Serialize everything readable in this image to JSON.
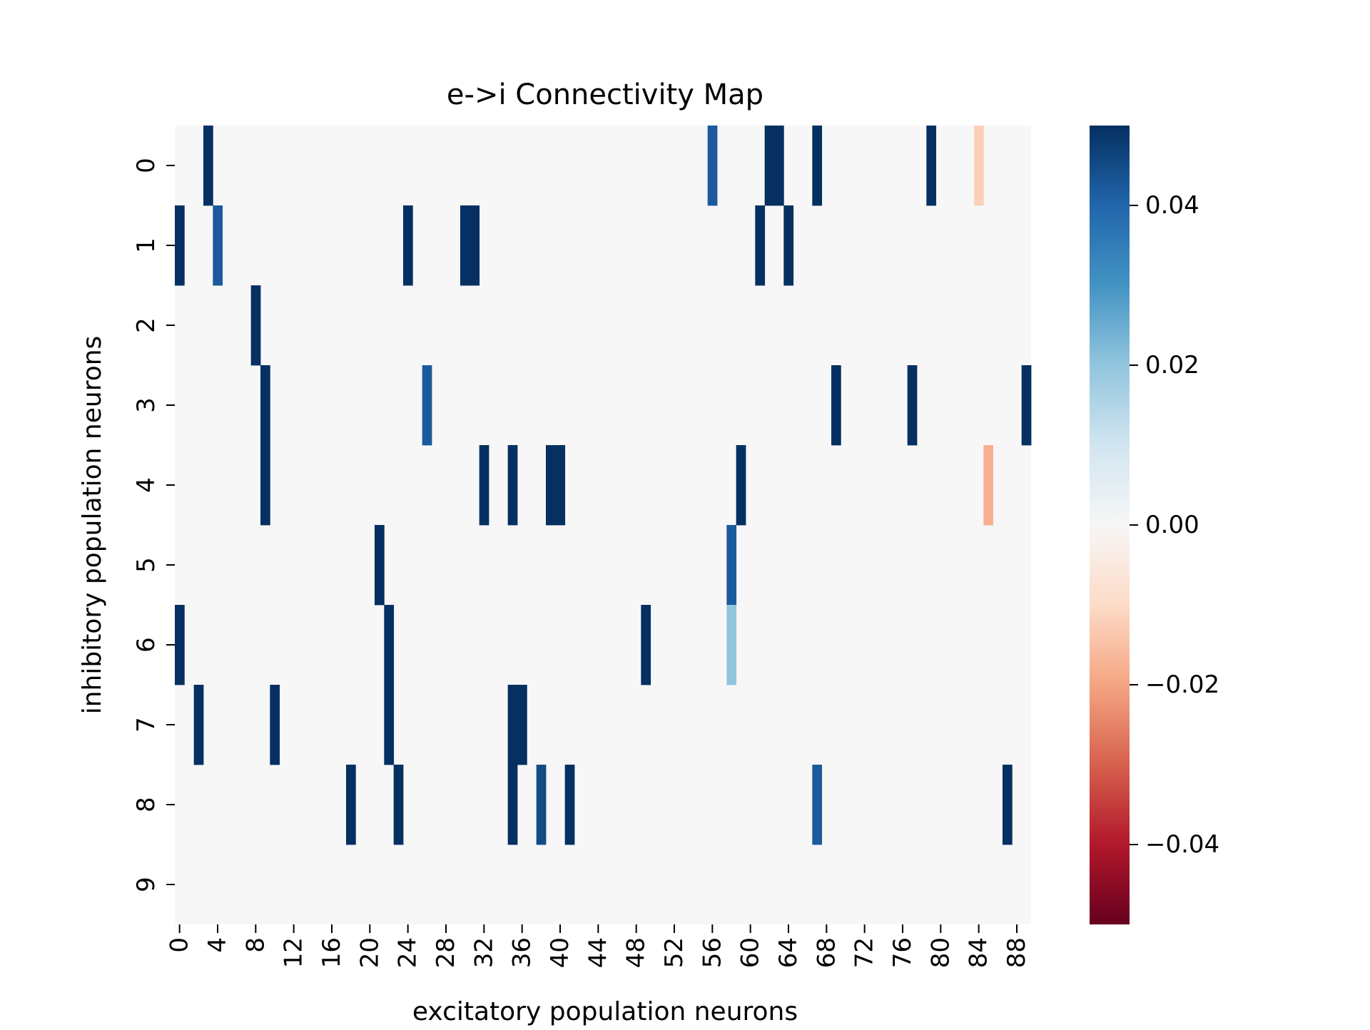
{
  "chart_data": {
    "type": "heatmap",
    "title": "e->i Connectivity Map",
    "xlabel": "excitatory population neurons",
    "ylabel": "inhibitory population neurons",
    "x_count": 90,
    "y_count": 10,
    "x_tick_labels": [
      "0",
      "4",
      "8",
      "12",
      "16",
      "20",
      "24",
      "28",
      "32",
      "36",
      "40",
      "44",
      "48",
      "52",
      "56",
      "60",
      "64",
      "68",
      "72",
      "76",
      "80",
      "84",
      "88"
    ],
    "y_tick_labels": [
      "0",
      "1",
      "2",
      "3",
      "4",
      "5",
      "6",
      "7",
      "8",
      "9"
    ],
    "background_value": 0.0,
    "vmin": -0.05,
    "vmax": 0.05,
    "colormap": "RdBu",
    "colorbar_ticks": [
      0.04,
      0.02,
      0.0,
      -0.02,
      -0.04
    ],
    "colorbar_tick_labels": [
      "0.04",
      "0.02",
      "0.00",
      "−0.02",
      "−0.04"
    ],
    "cells": [
      {
        "row": 0,
        "col": 3,
        "value": 0.05
      },
      {
        "row": 0,
        "col": 56,
        "value": 0.042
      },
      {
        "row": 0,
        "col": 62,
        "value": 0.05
      },
      {
        "row": 0,
        "col": 63,
        "value": 0.05
      },
      {
        "row": 0,
        "col": 67,
        "value": 0.05
      },
      {
        "row": 0,
        "col": 79,
        "value": 0.05
      },
      {
        "row": 0,
        "col": 84,
        "value": -0.012
      },
      {
        "row": 1,
        "col": 0,
        "value": 0.05
      },
      {
        "row": 1,
        "col": 4,
        "value": 0.042
      },
      {
        "row": 1,
        "col": 24,
        "value": 0.05
      },
      {
        "row": 1,
        "col": 30,
        "value": 0.05
      },
      {
        "row": 1,
        "col": 31,
        "value": 0.05
      },
      {
        "row": 1,
        "col": 61,
        "value": 0.05
      },
      {
        "row": 1,
        "col": 64,
        "value": 0.05
      },
      {
        "row": 2,
        "col": 8,
        "value": 0.05
      },
      {
        "row": 3,
        "col": 9,
        "value": 0.05
      },
      {
        "row": 3,
        "col": 26,
        "value": 0.042
      },
      {
        "row": 3,
        "col": 69,
        "value": 0.05
      },
      {
        "row": 3,
        "col": 77,
        "value": 0.05
      },
      {
        "row": 3,
        "col": 89,
        "value": 0.05
      },
      {
        "row": 4,
        "col": 9,
        "value": 0.05
      },
      {
        "row": 4,
        "col": 32,
        "value": 0.05
      },
      {
        "row": 4,
        "col": 35,
        "value": 0.05
      },
      {
        "row": 4,
        "col": 39,
        "value": 0.05
      },
      {
        "row": 4,
        "col": 40,
        "value": 0.05
      },
      {
        "row": 4,
        "col": 59,
        "value": 0.05
      },
      {
        "row": 4,
        "col": 85,
        "value": -0.018
      },
      {
        "row": 5,
        "col": 21,
        "value": 0.05
      },
      {
        "row": 5,
        "col": 58,
        "value": 0.042
      },
      {
        "row": 6,
        "col": 0,
        "value": 0.05
      },
      {
        "row": 6,
        "col": 22,
        "value": 0.05
      },
      {
        "row": 6,
        "col": 49,
        "value": 0.05
      },
      {
        "row": 6,
        "col": 58,
        "value": 0.02
      },
      {
        "row": 7,
        "col": 2,
        "value": 0.05
      },
      {
        "row": 7,
        "col": 10,
        "value": 0.05
      },
      {
        "row": 7,
        "col": 22,
        "value": 0.05
      },
      {
        "row": 7,
        "col": 35,
        "value": 0.05
      },
      {
        "row": 7,
        "col": 36,
        "value": 0.05
      },
      {
        "row": 8,
        "col": 18,
        "value": 0.05
      },
      {
        "row": 8,
        "col": 23,
        "value": 0.05
      },
      {
        "row": 8,
        "col": 35,
        "value": 0.05
      },
      {
        "row": 8,
        "col": 38,
        "value": 0.045
      },
      {
        "row": 8,
        "col": 41,
        "value": 0.05
      },
      {
        "row": 8,
        "col": 67,
        "value": 0.042
      },
      {
        "row": 8,
        "col": 87,
        "value": 0.05
      }
    ]
  }
}
